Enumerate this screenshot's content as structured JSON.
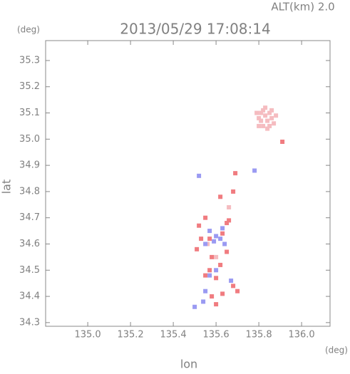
{
  "chart_data": {
    "type": "scatter",
    "title": "2013/05/29 17:08:14",
    "annotation": "ALT(km) 2.0",
    "x_unit": "(deg)",
    "y_unit": "(deg)",
    "x_label": "lon",
    "y_label": "lat",
    "xlim": [
      134.803,
      136.133
    ],
    "ylim": [
      34.286,
      35.376
    ],
    "xticks": [
      {
        "value": 135.0,
        "label": "135.0"
      },
      135.2,
      135.4,
      135.6,
      135.8,
      {
        "value": 136.0,
        "label": "136.0"
      }
    ],
    "yticks": [
      34.3,
      34.4,
      34.5,
      34.6,
      34.7,
      34.8,
      34.9,
      {
        "value": 35.0,
        "label": "35.0"
      },
      35.1,
      35.2,
      35.3
    ],
    "series": [
      {
        "color": "#f5bcc0",
        "x": [
          135.8,
          135.81,
          135.82,
          135.83,
          135.84,
          135.85,
          135.86,
          135.82,
          135.84,
          135.87,
          135.8,
          135.83,
          135.86,
          135.81,
          135.85,
          135.79,
          135.88,
          135.56,
          135.6,
          135.66
        ],
        "values": [
          35.08,
          35.1,
          35.11,
          35.09,
          35.07,
          35.1,
          35.08,
          35.05,
          35.04,
          35.06,
          35.05,
          35.12,
          35.11,
          35.07,
          35.05,
          35.1,
          35.09,
          34.6,
          34.55,
          34.74
        ]
      },
      {
        "color": "#f07c80",
        "x": [
          135.91,
          135.69,
          135.68,
          135.62,
          135.65,
          135.52,
          135.55,
          135.57,
          135.63,
          135.66,
          135.51,
          135.58,
          135.62,
          135.55,
          135.6,
          135.68,
          135.7,
          135.63,
          135.58,
          135.6,
          135.57,
          135.65,
          135.53
        ],
        "values": [
          34.99,
          34.87,
          34.8,
          34.78,
          34.68,
          34.67,
          34.7,
          34.62,
          34.64,
          34.69,
          34.58,
          34.55,
          34.52,
          34.48,
          34.47,
          34.44,
          34.42,
          34.41,
          34.4,
          34.37,
          34.5,
          34.57,
          34.62
        ]
      },
      {
        "color": "#9a9af2",
        "x": [
          135.52,
          135.57,
          135.6,
          135.62,
          135.55,
          135.59,
          135.64,
          135.57,
          135.6,
          135.55,
          135.54,
          135.67,
          135.78,
          135.5,
          135.63
        ],
        "values": [
          34.86,
          34.65,
          34.63,
          34.62,
          34.6,
          34.61,
          34.6,
          34.48,
          34.5,
          34.42,
          34.38,
          34.46,
          34.88,
          34.36,
          34.66
        ]
      }
    ]
  }
}
